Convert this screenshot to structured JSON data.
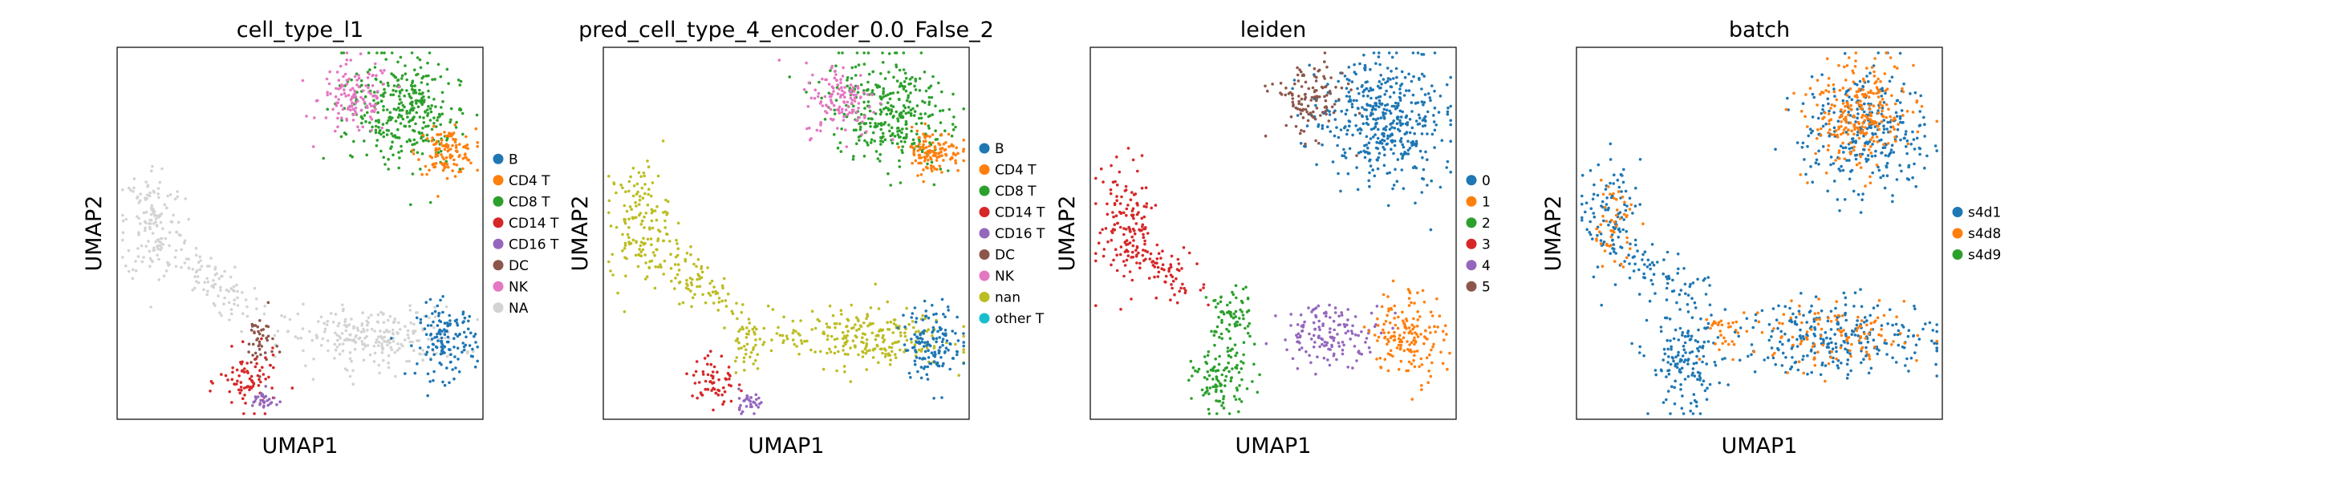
{
  "figure": {
    "layout": "4 UMAP scatter panels in one row, legend to the right of each panel"
  },
  "chart_data": [
    {
      "type": "scatter",
      "title": "cell_type_l1",
      "xlabel": "UMAP1",
      "ylabel": "UMAP2",
      "ticks": "none",
      "legend_placement": "right",
      "legend": [
        {
          "label": "B",
          "color": "#1f77b4"
        },
        {
          "label": "CD4 T",
          "color": "#ff7f0e"
        },
        {
          "label": "CD8 T",
          "color": "#2ca02c"
        },
        {
          "label": "CD14 T",
          "color": "#d62728"
        },
        {
          "label": "CD16 T",
          "color": "#9467bd"
        },
        {
          "label": "DC",
          "color": "#8c564b"
        },
        {
          "label": "NK",
          "color": "#e377c2"
        },
        {
          "label": "NA",
          "color": "#d3d3d3"
        }
      ],
      "groups": [
        {
          "label": "CD8 T",
          "color": "#2ca02c",
          "cx": 0.78,
          "cy": 0.83,
          "sx": 0.08,
          "sy": 0.07,
          "n": 340,
          "rot": -0.7
        },
        {
          "label": "NK",
          "color": "#e377c2",
          "cx": 0.65,
          "cy": 0.86,
          "sx": 0.05,
          "sy": 0.05,
          "n": 130,
          "rot": 0
        },
        {
          "label": "CD4 T",
          "color": "#ff7f0e",
          "cx": 0.9,
          "cy": 0.72,
          "sx": 0.04,
          "sy": 0.03,
          "n": 120,
          "rot": 0
        },
        {
          "label": "NA",
          "color": "#d3d3d3",
          "cx": 0.1,
          "cy": 0.53,
          "sx": 0.04,
          "sy": 0.08,
          "n": 140,
          "rot": 0
        },
        {
          "label": "NA",
          "color": "#d3d3d3",
          "cx": 0.24,
          "cy": 0.38,
          "sx": 0.08,
          "sy": 0.03,
          "n": 90,
          "rot": -0.6
        },
        {
          "label": "NA",
          "color": "#d3d3d3",
          "cx": 0.7,
          "cy": 0.22,
          "sx": 0.12,
          "sy": 0.04,
          "n": 240,
          "rot": 0
        },
        {
          "label": "B",
          "color": "#1f77b4",
          "cx": 0.9,
          "cy": 0.21,
          "sx": 0.04,
          "sy": 0.05,
          "n": 140,
          "rot": 0
        },
        {
          "label": "DC",
          "color": "#8c564b",
          "cx": 0.39,
          "cy": 0.21,
          "sx": 0.02,
          "sy": 0.04,
          "n": 45,
          "rot": 0
        },
        {
          "label": "CD14 T",
          "color": "#d62728",
          "cx": 0.36,
          "cy": 0.1,
          "sx": 0.04,
          "sy": 0.04,
          "n": 80,
          "rot": 0
        },
        {
          "label": "CD16 T",
          "color": "#9467bd",
          "cx": 0.4,
          "cy": 0.05,
          "sx": 0.02,
          "sy": 0.015,
          "n": 30,
          "rot": 0
        }
      ]
    },
    {
      "type": "scatter",
      "title": "pred_cell_type_4_encoder_0.0_False_2",
      "xlabel": "UMAP1",
      "ylabel": "UMAP2",
      "ticks": "none",
      "legend_placement": "right",
      "legend": [
        {
          "label": "B",
          "color": "#1f77b4"
        },
        {
          "label": "CD4 T",
          "color": "#ff7f0e"
        },
        {
          "label": "CD8 T",
          "color": "#2ca02c"
        },
        {
          "label": "CD14 T",
          "color": "#d62728"
        },
        {
          "label": "CD16 T",
          "color": "#9467bd"
        },
        {
          "label": "DC",
          "color": "#8c564b"
        },
        {
          "label": "NK",
          "color": "#e377c2"
        },
        {
          "label": "nan",
          "color": "#bcbd22"
        },
        {
          "label": "other T",
          "color": "#17becf"
        }
      ],
      "groups": [
        {
          "label": "CD8 T",
          "color": "#2ca02c",
          "cx": 0.78,
          "cy": 0.83,
          "sx": 0.08,
          "sy": 0.07,
          "n": 340,
          "rot": -0.7
        },
        {
          "label": "NK",
          "color": "#e377c2",
          "cx": 0.65,
          "cy": 0.86,
          "sx": 0.05,
          "sy": 0.05,
          "n": 130,
          "rot": 0
        },
        {
          "label": "CD4 T",
          "color": "#ff7f0e",
          "cx": 0.9,
          "cy": 0.72,
          "sx": 0.04,
          "sy": 0.03,
          "n": 120,
          "rot": 0
        },
        {
          "label": "nan",
          "color": "#bcbd22",
          "cx": 0.1,
          "cy": 0.53,
          "sx": 0.04,
          "sy": 0.08,
          "n": 140,
          "rot": 0
        },
        {
          "label": "nan",
          "color": "#bcbd22",
          "cx": 0.24,
          "cy": 0.38,
          "sx": 0.08,
          "sy": 0.03,
          "n": 90,
          "rot": -0.6
        },
        {
          "label": "nan",
          "color": "#bcbd22",
          "cx": 0.7,
          "cy": 0.22,
          "sx": 0.12,
          "sy": 0.04,
          "n": 240,
          "rot": 0
        },
        {
          "label": "B",
          "color": "#1f77b4",
          "cx": 0.9,
          "cy": 0.21,
          "sx": 0.04,
          "sy": 0.05,
          "n": 140,
          "rot": 0
        },
        {
          "label": "nan",
          "color": "#bcbd22",
          "cx": 0.39,
          "cy": 0.21,
          "sx": 0.02,
          "sy": 0.04,
          "n": 45,
          "rot": 0
        },
        {
          "label": "CD14 T",
          "color": "#d62728",
          "cx": 0.3,
          "cy": 0.1,
          "sx": 0.03,
          "sy": 0.04,
          "n": 60,
          "rot": 0
        },
        {
          "label": "CD16 T",
          "color": "#9467bd",
          "cx": 0.4,
          "cy": 0.05,
          "sx": 0.02,
          "sy": 0.015,
          "n": 30,
          "rot": 0
        }
      ]
    },
    {
      "type": "scatter",
      "title": "leiden",
      "xlabel": "UMAP1",
      "ylabel": "UMAP2",
      "ticks": "none",
      "legend_placement": "right",
      "legend": [
        {
          "label": "0",
          "color": "#1f77b4"
        },
        {
          "label": "1",
          "color": "#ff7f0e"
        },
        {
          "label": "2",
          "color": "#2ca02c"
        },
        {
          "label": "3",
          "color": "#d62728"
        },
        {
          "label": "4",
          "color": "#9467bd"
        },
        {
          "label": "5",
          "color": "#8c564b"
        }
      ],
      "groups": [
        {
          "label": "0",
          "color": "#1f77b4",
          "cx": 0.8,
          "cy": 0.8,
          "sx": 0.09,
          "sy": 0.08,
          "n": 440,
          "rot": -0.7
        },
        {
          "label": "5",
          "color": "#8c564b",
          "cx": 0.6,
          "cy": 0.86,
          "sx": 0.05,
          "sy": 0.05,
          "n": 120,
          "rot": 0
        },
        {
          "label": "3",
          "color": "#d62728",
          "cx": 0.1,
          "cy": 0.52,
          "sx": 0.04,
          "sy": 0.08,
          "n": 140,
          "rot": 0
        },
        {
          "label": "3",
          "color": "#d62728",
          "cx": 0.2,
          "cy": 0.4,
          "sx": 0.06,
          "sy": 0.03,
          "n": 70,
          "rot": -0.6
        },
        {
          "label": "2",
          "color": "#2ca02c",
          "cx": 0.38,
          "cy": 0.26,
          "sx": 0.03,
          "sy": 0.05,
          "n": 80,
          "rot": 0
        },
        {
          "label": "2",
          "color": "#2ca02c",
          "cx": 0.36,
          "cy": 0.1,
          "sx": 0.04,
          "sy": 0.04,
          "n": 100,
          "rot": 0
        },
        {
          "label": "4",
          "color": "#9467bd",
          "cx": 0.66,
          "cy": 0.23,
          "sx": 0.07,
          "sy": 0.04,
          "n": 140,
          "rot": 0
        },
        {
          "label": "1",
          "color": "#ff7f0e",
          "cx": 0.87,
          "cy": 0.23,
          "sx": 0.05,
          "sy": 0.06,
          "n": 160,
          "rot": 0
        }
      ]
    },
    {
      "type": "scatter",
      "title": "batch",
      "xlabel": "UMAP1",
      "ylabel": "UMAP2",
      "ticks": "none",
      "legend_placement": "right",
      "legend": [
        {
          "label": "s4d1",
          "color": "#1f77b4"
        },
        {
          "label": "s4d8",
          "color": "#ff7f0e"
        },
        {
          "label": "s4d9",
          "color": "#2ca02c"
        }
      ],
      "groups": [
        {
          "label": "s4d1",
          "color": "#1f77b4",
          "cx": 0.78,
          "cy": 0.78,
          "sx": 0.09,
          "sy": 0.08,
          "n": 300,
          "rot": -0.7
        },
        {
          "label": "s4d8",
          "color": "#ff7f0e",
          "cx": 0.78,
          "cy": 0.82,
          "sx": 0.07,
          "sy": 0.07,
          "n": 260,
          "rot": -0.7
        },
        {
          "label": "s4d1",
          "color": "#1f77b4",
          "cx": 0.1,
          "cy": 0.53,
          "sx": 0.04,
          "sy": 0.08,
          "n": 110,
          "rot": 0
        },
        {
          "label": "s4d8",
          "color": "#ff7f0e",
          "cx": 0.1,
          "cy": 0.53,
          "sx": 0.03,
          "sy": 0.06,
          "n": 50,
          "rot": 0
        },
        {
          "label": "s4d1",
          "color": "#1f77b4",
          "cx": 0.24,
          "cy": 0.38,
          "sx": 0.07,
          "sy": 0.03,
          "n": 60,
          "rot": -0.6
        },
        {
          "label": "s4d1",
          "color": "#1f77b4",
          "cx": 0.3,
          "cy": 0.15,
          "sx": 0.05,
          "sy": 0.07,
          "n": 150,
          "rot": 0
        },
        {
          "label": "s4d8",
          "color": "#ff7f0e",
          "cx": 0.4,
          "cy": 0.23,
          "sx": 0.03,
          "sy": 0.04,
          "n": 30,
          "rot": 0
        },
        {
          "label": "s4d1",
          "color": "#1f77b4",
          "cx": 0.72,
          "cy": 0.22,
          "sx": 0.14,
          "sy": 0.05,
          "n": 260,
          "rot": 0
        },
        {
          "label": "s4d8",
          "color": "#ff7f0e",
          "cx": 0.72,
          "cy": 0.22,
          "sx": 0.12,
          "sy": 0.04,
          "n": 110,
          "rot": 0
        }
      ]
    }
  ]
}
